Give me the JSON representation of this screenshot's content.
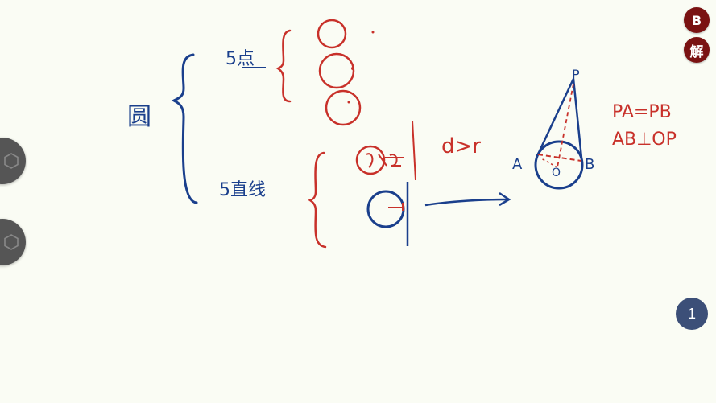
{
  "whiteboard": {
    "label_circle": "圆",
    "label_points": "5点",
    "label_lines": "5直线",
    "label_d_r": "d>r",
    "label_P": "P",
    "label_A": "A",
    "label_B": "B",
    "label_O": "O",
    "label_eq1": "PA=PB",
    "label_eq2": "AB⊥OP",
    "colors": {
      "blue": "#1a3f8c",
      "red": "#c8312a"
    }
  },
  "buttons": {
    "b_label": "B",
    "jie_label": "解",
    "page_number": "1"
  }
}
